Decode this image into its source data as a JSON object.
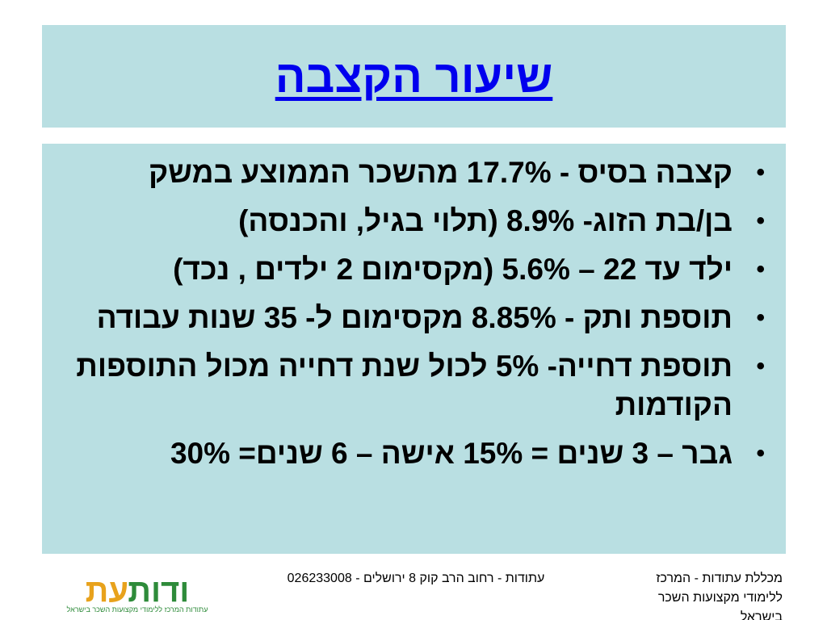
{
  "slide": {
    "title": "שיעור הקצבה",
    "bullets": [
      {
        "text": "קצבה בסיס  - 17.7% מהשכר הממוצע במשק"
      },
      {
        "text": "בן/בת הזוג- 8.9%  (תלוי בגיל, והכנסה)"
      },
      {
        "text": "ילד עד 22 – 5.6% (מקסימום 2 ילדים , נכד)"
      },
      {
        "text": "תוספת ותק - 8.85% מקסימום ל- 35 שנות עבודה"
      },
      {
        "text": "תוספת דחייה- 5% לכול שנת דחייה מכול התוספות הקודמות"
      },
      {
        "text": "גבר – 3 שנים = 15%  אישה – 6 שנים= 30%"
      }
    ],
    "bullet_symbol": "•"
  },
  "footer": {
    "address": "עתודות - רחוב הרב קוק 8 ירושלים - 026233008",
    "college": "מכללת עתודות - המרכז ללימודי מקצועות השכר בישראל",
    "logo": {
      "part_a": "עת",
      "part_b": "ודות",
      "tagline": "עתודות המרכז ללימודי מקצועות השכר בישראל"
    }
  },
  "colors": {
    "box_background": "#b9dfe2",
    "title_color": "#0000ee",
    "logo_orange": "#e8a21c",
    "logo_green": "#2e8b3a"
  }
}
